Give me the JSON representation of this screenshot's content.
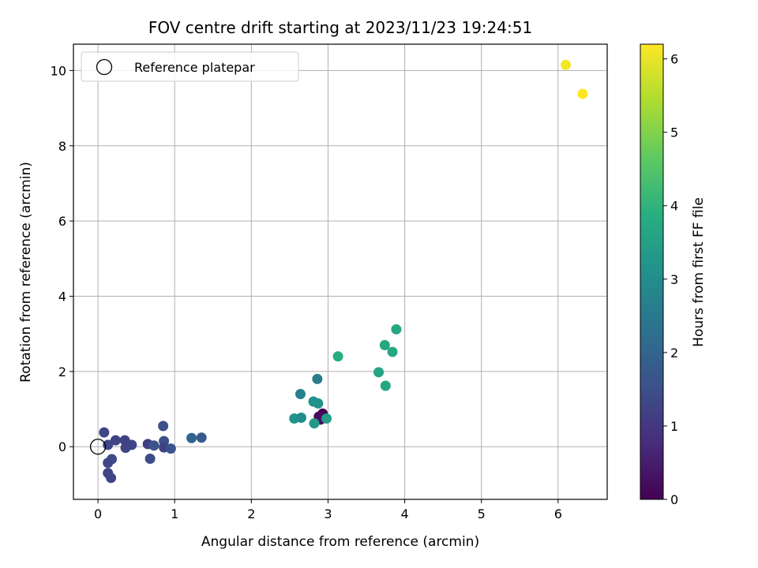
{
  "chart_data": {
    "type": "scatter",
    "title": "FOV centre drift starting at 2023/11/23 19:24:51",
    "xlabel": "Angular distance from reference (arcmin)",
    "ylabel": "Rotation from reference (arcmin)",
    "xlim": [
      -0.32,
      6.64
    ],
    "ylim": [
      -1.4,
      10.7
    ],
    "xticks": [
      0,
      1,
      2,
      3,
      4,
      5,
      6
    ],
    "yticks": [
      0,
      2,
      4,
      6,
      8,
      10
    ],
    "grid": true,
    "legend": {
      "placement": "upper-left",
      "entries": [
        "Reference platepar"
      ]
    },
    "reference_point": {
      "x": 0,
      "y": 0,
      "marker": "open-circle"
    },
    "colorbar": {
      "label": "Hours from first FF file",
      "colormap": "viridis",
      "range": [
        0,
        6.2
      ],
      "ticks": [
        0,
        1,
        2,
        3,
        4,
        5,
        6
      ]
    },
    "points": [
      {
        "x": 2.93,
        "y": 0.88,
        "c": 0.05
      },
      {
        "x": 2.88,
        "y": 0.8,
        "c": 0.15
      },
      {
        "x": 2.9,
        "y": 0.72,
        "c": 0.25
      },
      {
        "x": 0.08,
        "y": 0.38,
        "c": 1.3
      },
      {
        "x": 0.13,
        "y": 0.05,
        "c": 1.35
      },
      {
        "x": 0.23,
        "y": 0.17,
        "c": 1.25
      },
      {
        "x": 0.35,
        "y": 0.17,
        "c": 1.2
      },
      {
        "x": 0.44,
        "y": 0.05,
        "c": 1.3
      },
      {
        "x": 0.36,
        "y": -0.03,
        "c": 1.25
      },
      {
        "x": 0.18,
        "y": -0.33,
        "c": 1.4
      },
      {
        "x": 0.13,
        "y": -0.43,
        "c": 1.35
      },
      {
        "x": 0.13,
        "y": -0.7,
        "c": 1.3
      },
      {
        "x": 0.17,
        "y": -0.83,
        "c": 1.3
      },
      {
        "x": 0.65,
        "y": 0.07,
        "c": 1.1
      },
      {
        "x": 0.73,
        "y": 0.03,
        "c": 1.6
      },
      {
        "x": 0.68,
        "y": -0.32,
        "c": 1.4
      },
      {
        "x": 0.85,
        "y": 0.55,
        "c": 1.5
      },
      {
        "x": 0.86,
        "y": 0.15,
        "c": 1.5
      },
      {
        "x": 0.86,
        "y": -0.02,
        "c": 1.2
      },
      {
        "x": 0.95,
        "y": -0.05,
        "c": 1.6
      },
      {
        "x": 1.22,
        "y": 0.23,
        "c": 2.0
      },
      {
        "x": 1.35,
        "y": 0.24,
        "c": 1.8
      },
      {
        "x": 2.56,
        "y": 0.75,
        "c": 3.2
      },
      {
        "x": 2.65,
        "y": 0.77,
        "c": 3.0
      },
      {
        "x": 2.64,
        "y": 1.4,
        "c": 2.7
      },
      {
        "x": 2.81,
        "y": 1.2,
        "c": 3.1
      },
      {
        "x": 2.87,
        "y": 1.15,
        "c": 3.1
      },
      {
        "x": 2.86,
        "y": 1.8,
        "c": 2.6
      },
      {
        "x": 2.82,
        "y": 0.62,
        "c": 3.3
      },
      {
        "x": 2.98,
        "y": 0.75,
        "c": 3.4
      },
      {
        "x": 3.13,
        "y": 2.4,
        "c": 3.8
      },
      {
        "x": 3.66,
        "y": 1.98,
        "c": 3.6
      },
      {
        "x": 3.75,
        "y": 1.62,
        "c": 3.7
      },
      {
        "x": 3.74,
        "y": 2.7,
        "c": 3.7
      },
      {
        "x": 3.84,
        "y": 2.52,
        "c": 3.7
      },
      {
        "x": 3.89,
        "y": 3.12,
        "c": 3.7
      },
      {
        "x": 6.1,
        "y": 10.15,
        "c": 6.1
      },
      {
        "x": 6.32,
        "y": 9.38,
        "c": 6.2
      }
    ]
  }
}
